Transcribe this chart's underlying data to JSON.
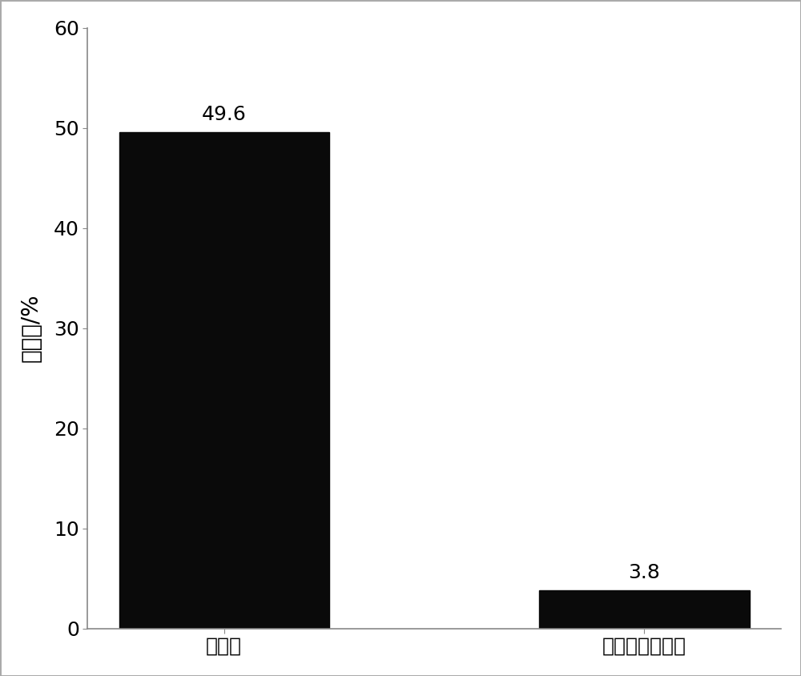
{
  "categories": [
    "顶插接",
    "零子叶套管嫁接"
  ],
  "values": [
    49.6,
    3.8
  ],
  "bar_colors": [
    "#0a0a0a",
    "#0a0a0a"
  ],
  "bar_width": 0.5,
  "ylabel": "发病率/%",
  "ylim": [
    0,
    60
  ],
  "yticks": [
    0,
    10,
    20,
    30,
    40,
    50,
    60
  ],
  "value_labels": [
    "49.6",
    "3.8"
  ],
  "background_color": "#ffffff",
  "outer_border_color": "#aaaaaa",
  "axis_color": "#888888",
  "ylabel_fontsize": 20,
  "tick_fontsize": 18,
  "label_fontsize": 18,
  "value_fontsize": 18,
  "figsize": [
    10.0,
    8.44
  ],
  "dpi": 100
}
